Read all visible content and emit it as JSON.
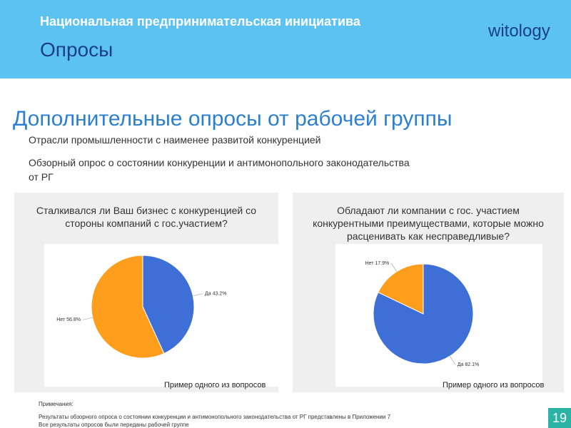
{
  "header": {
    "title": "Национальная предпринимательская инициатива",
    "subtitle": "Опросы",
    "logo": "witology"
  },
  "heading": "Дополнительные опросы от рабочей группы",
  "bullets": [
    "Отрасли промышленности  с наименее развитой конкуренцией",
    "Обзорный опрос о состоянии конкуренции и антимонопольного законодательства от РГ"
  ],
  "chart_data": [
    {
      "type": "pie",
      "title": "Сталкивался ли Ваш бизнес с конкуренцией со стороны компаний с гос.участием?",
      "values": [
        43.2,
        56.8
      ],
      "value_labels": [
        "Да 43.2%",
        "Нет 56.8%"
      ],
      "colors": [
        "#3d6fd6",
        "#ff9d1c"
      ],
      "caption": "Пример одного из вопросов"
    },
    {
      "type": "pie",
      "title": "Обладают ли компании с гос. участием конкурентными преимуществами, которые можно расценивать как несправедливые?",
      "values": [
        82.1,
        17.9
      ],
      "value_labels": [
        "Да 82.1%",
        "Нет 17.9%"
      ],
      "colors": [
        "#3d6fd6",
        "#ff9d1c"
      ],
      "caption": "Пример одного из вопросов"
    }
  ],
  "notes": {
    "title": "Примечания:",
    "lines": [
      "Результаты обзорного опроса о состоянии конкуренции и антимонопольного законодательства от РГ представлены в Приложении 7",
      "Все результаты опросов были переданы рабочей группе"
    ]
  },
  "page_number": "19"
}
